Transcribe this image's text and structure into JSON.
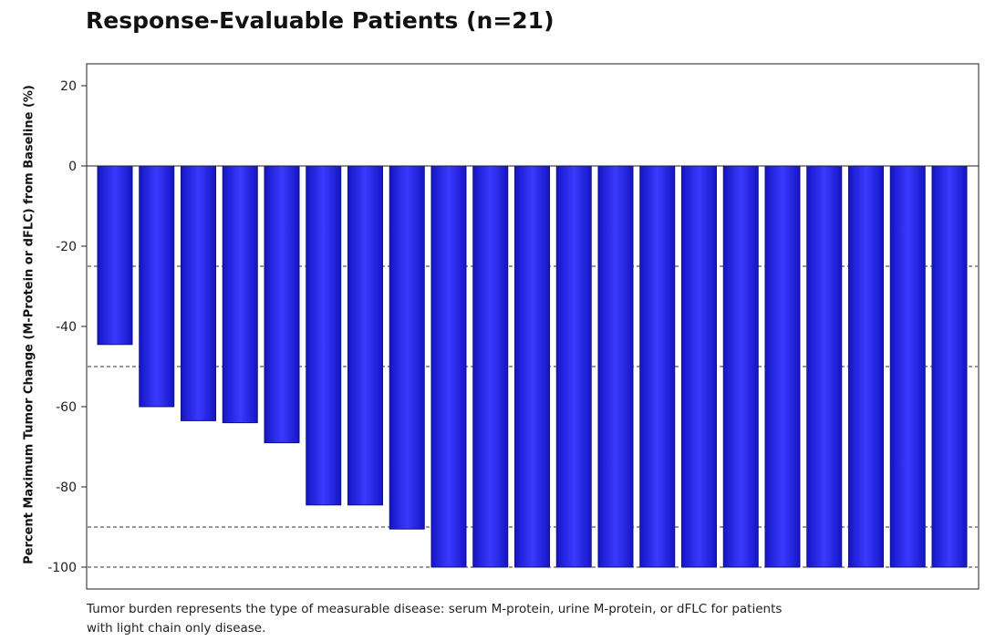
{
  "chart_data": {
    "type": "bar",
    "title": "Response-Evaluable Patients (n=21)",
    "xlabel": "",
    "ylabel": "Percent Maximum Tumor Change (M-Protein or dFLC) from Baseline (%)",
    "ylim": [
      -105,
      25
    ],
    "yticks": [
      20,
      0,
      -20,
      -40,
      -60,
      -80,
      -100
    ],
    "ytick_labels": [
      "20",
      "0",
      "-20",
      "-40",
      "-60",
      "-80",
      "-100"
    ],
    "values": [
      -44.5,
      -60,
      -63.5,
      -64,
      -69,
      -84.5,
      -84.5,
      -90.5,
      -100,
      -100,
      -100,
      -100,
      -100,
      -100,
      -100,
      -100,
      -100,
      -100,
      -100,
      -100,
      -100
    ],
    "reference_lines": [
      -25,
      -50,
      -90,
      -100
    ],
    "bar_color": "#2222ee",
    "grid": false,
    "legend": "none"
  },
  "footnote": {
    "line1": "Tumor burden represents the type of measurable disease: serum M-protein, urine M-protein, or dFLC for patients",
    "line2": "with light chain only disease."
  }
}
